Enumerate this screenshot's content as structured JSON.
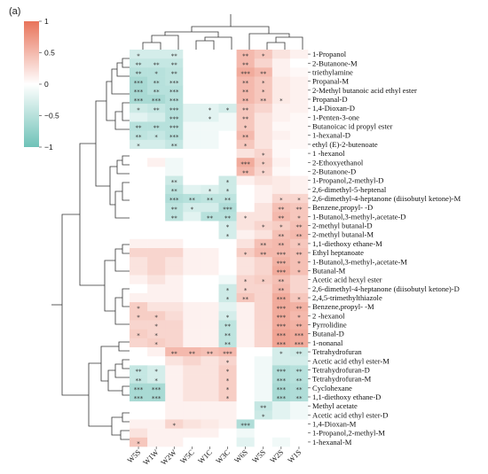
{
  "panel_label": "(a)",
  "chart_data": {
    "type": "heatmap",
    "columns": [
      "W5S",
      "W1W",
      "W2W",
      "W5C",
      "W1C",
      "W3C",
      "W6S",
      "W5S",
      "W2S",
      "W1S"
    ],
    "colorbar": {
      "min": -1,
      "max": 1,
      "ticks": [
        1,
        0.5,
        0,
        -0.5,
        -1
      ],
      "tick_labels": [
        "1",
        "0.5",
        "0",
        "−0.5",
        "−1"
      ],
      "colors": {
        "high": "#e8735a",
        "mid": "#ffffff",
        "low": "#6fc2b8"
      }
    },
    "rows": [
      {
        "label": "1-Propanol",
        "values": [
          -0.3,
          -0.3,
          -0.3,
          0,
          0,
          0,
          0.5,
          0.4,
          0.2,
          0.1
        ],
        "stars": [
          "*",
          "",
          "**",
          "",
          "",
          "",
          "**",
          "*",
          "",
          ""
        ]
      },
      {
        "label": "2-Butanone-M",
        "values": [
          -0.4,
          -0.4,
          -0.4,
          0,
          0,
          0,
          0.5,
          0.3,
          0.1,
          0
        ],
        "stars": [
          "**",
          "**",
          "**",
          "",
          "",
          "",
          "**",
          "",
          "",
          ""
        ]
      },
      {
        "label": "triethylamine",
        "values": [
          -0.5,
          -0.5,
          -0.45,
          0,
          0,
          0,
          0.6,
          0.5,
          0.1,
          0.05
        ],
        "stars": [
          "**",
          "*",
          "**",
          "",
          "",
          "",
          "***",
          "**",
          "",
          ""
        ]
      },
      {
        "label": "Propanal-M",
        "values": [
          -0.6,
          -0.5,
          -0.45,
          0,
          0,
          0,
          0.5,
          0.4,
          0.15,
          0.1
        ],
        "stars": [
          "***",
          "**",
          "***",
          "",
          "",
          "",
          "**",
          "*",
          "",
          ""
        ]
      },
      {
        "label": "2-Methyl butanoic acid ethyl ester",
        "values": [
          -0.6,
          -0.5,
          -0.5,
          0,
          0,
          0,
          0.5,
          0.4,
          0.15,
          0.1
        ],
        "stars": [
          "***",
          "**",
          "***",
          "",
          "",
          "",
          "**",
          "*",
          "",
          ""
        ]
      },
      {
        "label": "Propanal-D",
        "values": [
          -0.6,
          -0.6,
          -0.5,
          0,
          0,
          0,
          0.5,
          0.4,
          0.15,
          0.1
        ],
        "stars": [
          "***",
          "***",
          "***",
          "",
          "",
          "",
          "**",
          "**",
          "*",
          ""
        ]
      },
      {
        "label": "1,4-Dioxan-D",
        "values": [
          -0.35,
          -0.4,
          -0.5,
          -0.2,
          -0.2,
          -0.3,
          0.4,
          0.3,
          0.1,
          0.1
        ],
        "stars": [
          "*",
          "**",
          "***",
          "",
          "*",
          "*",
          "**",
          "",
          "",
          ""
        ]
      },
      {
        "label": "1-Penten-3-one",
        "values": [
          -0.2,
          -0.3,
          -0.5,
          -0.2,
          -0.2,
          -0.1,
          0.4,
          0.2,
          0.1,
          0.05
        ],
        "stars": [
          "",
          "",
          "***",
          "",
          "*",
          "",
          "**",
          "",
          "",
          ""
        ]
      },
      {
        "label": "Butanoicac id propyl ester",
        "values": [
          -0.5,
          -0.5,
          -0.5,
          -0.1,
          -0.1,
          -0.1,
          0.4,
          0.2,
          0.05,
          0.05
        ],
        "stars": [
          "**",
          "**",
          "***",
          "",
          "",
          "",
          "*",
          "",
          "",
          ""
        ]
      },
      {
        "label": "1-hexanal-D",
        "values": [
          -0.45,
          -0.4,
          -0.5,
          -0.1,
          -0.1,
          0,
          0.5,
          0.2,
          0.1,
          0.05
        ],
        "stars": [
          "**",
          "*",
          "***",
          "",
          "",
          "",
          "**",
          "",
          "",
          ""
        ]
      },
      {
        "label": "ethyl (E)-2-butenoate",
        "values": [
          -0.3,
          -0.3,
          -0.4,
          -0.1,
          -0.1,
          0,
          0.4,
          0.2,
          0.05,
          0.05
        ],
        "stars": [
          "*",
          "",
          "**",
          "",
          "",
          "",
          "*",
          "",
          "",
          ""
        ]
      },
      {
        "label": "1 -hexanol",
        "values": [
          0,
          0,
          0,
          0,
          0,
          0,
          0.2,
          0.3,
          0.05,
          0
        ],
        "stars": [
          "",
          "",
          "",
          "",
          "",
          "",
          "",
          "*",
          "",
          ""
        ]
      },
      {
        "label": "2-Ethoxyethanol",
        "values": [
          0,
          0.1,
          -0.1,
          0,
          0,
          0,
          0.6,
          0.35,
          0.1,
          0
        ],
        "stars": [
          "",
          "",
          "",
          "",
          "",
          "",
          "***",
          "*",
          "",
          ""
        ]
      },
      {
        "label": "2-Butanone-D",
        "values": [
          0,
          0,
          -0.1,
          0,
          0,
          0,
          0.5,
          0.3,
          0.05,
          0
        ],
        "stars": [
          "",
          "",
          "",
          "",
          "",
          "",
          "**",
          "*",
          "",
          ""
        ]
      },
      {
        "label": "1-Propanol,2-methyl-D",
        "values": [
          0,
          0,
          -0.35,
          0,
          0,
          -0.35,
          0.1,
          0.2,
          0.15,
          0.1
        ],
        "stars": [
          "",
          "",
          "**",
          "",
          "",
          "*",
          "",
          "",
          "",
          ""
        ]
      },
      {
        "label": "2,6-dimethyl-5-heptenal",
        "values": [
          0,
          0,
          -0.45,
          -0.2,
          -0.25,
          -0.35,
          0,
          0.1,
          0.15,
          0.1
        ],
        "stars": [
          "",
          "",
          "**",
          "",
          "*",
          "*",
          "",
          "",
          "",
          ""
        ]
      },
      {
        "label": "2,6-dimethyl-4-heptanone (diisobutyl ketone)-M",
        "values": [
          0,
          0,
          -0.55,
          -0.5,
          -0.45,
          -0.45,
          0,
          0.1,
          0.3,
          0.3
        ],
        "stars": [
          "",
          "",
          "***",
          "**",
          "**",
          "**",
          "",
          "",
          "*",
          "*"
        ]
      },
      {
        "label": "Benzene,propyl- -D",
        "values": [
          0,
          0,
          -0.45,
          -0.3,
          -0.3,
          -0.55,
          0,
          0.2,
          0.45,
          0.4
        ],
        "stars": [
          "",
          "",
          "**",
          "*",
          "",
          "***",
          "",
          "",
          "**",
          "**"
        ]
      },
      {
        "label": "1-Butanol,3-methyl-,acetate-D",
        "values": [
          0,
          0,
          -0.45,
          -0.2,
          -0.5,
          -0.5,
          0.2,
          0.2,
          0.5,
          0.4
        ],
        "stars": [
          "",
          "",
          "**",
          "",
          "**",
          "**",
          "*",
          "",
          "**",
          "*"
        ]
      },
      {
        "label": "2-methyl butanal-D",
        "values": [
          0,
          0,
          0,
          0,
          0,
          -0.3,
          0.2,
          0.3,
          0.35,
          0.45
        ],
        "stars": [
          "",
          "",
          "",
          "",
          "",
          "*",
          "",
          "*",
          "*",
          "**"
        ]
      },
      {
        "label": "2-methyl butanal-M",
        "values": [
          0,
          0,
          0,
          0,
          0,
          -0.3,
          0.1,
          0.2,
          0.45,
          0.5
        ],
        "stars": [
          "",
          "",
          "",
          "",
          "",
          "*",
          "",
          "",
          "**",
          "**"
        ]
      },
      {
        "label": "1,1-diethoxy ethane-M",
        "values": [
          0.1,
          0.1,
          0.1,
          0,
          0,
          0,
          0.2,
          0.45,
          0.5,
          0.4
        ],
        "stars": [
          "",
          "",
          "",
          "",
          "",
          "",
          "",
          "**",
          "**",
          "*"
        ]
      },
      {
        "label": "Ethyl heptanoate",
        "values": [
          0.3,
          0.3,
          0.3,
          0.1,
          0.1,
          0,
          0.35,
          0.5,
          0.5,
          0.45
        ],
        "stars": [
          "",
          "",
          "",
          "",
          "",
          "",
          "*",
          "**",
          "***",
          "**"
        ]
      },
      {
        "label": "1-Butanol,3-methyl-,acetate-M",
        "values": [
          0.2,
          0.3,
          0.2,
          0.1,
          0.1,
          0,
          0.2,
          0.3,
          0.55,
          0.45
        ],
        "stars": [
          "",
          "",
          "",
          "",
          "",
          "",
          "",
          "",
          "***",
          "*"
        ]
      },
      {
        "label": "Butanal-M",
        "values": [
          0.2,
          0.3,
          0.2,
          0.1,
          0.1,
          0,
          0.2,
          0.3,
          0.6,
          0.45
        ],
        "stars": [
          "",
          "",
          "",
          "",
          "",
          "",
          "",
          "",
          "***",
          "*"
        ]
      },
      {
        "label": "Acetic acid hexyl ester",
        "values": [
          0.1,
          0.2,
          0.1,
          0,
          0,
          -0.1,
          0.3,
          0.35,
          0.45,
          0.3
        ],
        "stars": [
          "",
          "",
          "",
          "",
          "",
          "",
          "*",
          "*",
          "**",
          ""
        ]
      },
      {
        "label": "2,6-dimethyl-4-heptanone (diisobutyl ketone)-D",
        "values": [
          0,
          0.1,
          0.1,
          0,
          0,
          -0.35,
          0.3,
          0.3,
          0.5,
          0.3
        ],
        "stars": [
          "",
          "",
          "",
          "",
          "",
          "*",
          "*",
          "",
          "**",
          ""
        ]
      },
      {
        "label": "2,4,5-trimethylthiazole",
        "values": [
          0.1,
          0.1,
          0.1,
          0,
          0,
          -0.35,
          0.4,
          0.3,
          0.6,
          0.4
        ],
        "stars": [
          "",
          "",
          "",
          "",
          "",
          "*",
          "**",
          "",
          "***",
          "*"
        ]
      },
      {
        "label": "Benzene,propyl- -M",
        "values": [
          0.35,
          0.2,
          0.2,
          0.1,
          0.1,
          -0.2,
          0.1,
          0.3,
          0.6,
          0.55
        ],
        "stars": [
          "*",
          "",
          "",
          "",
          "",
          "",
          "",
          "",
          "***",
          "**"
        ]
      },
      {
        "label": "2 -hexanol",
        "values": [
          0.35,
          0.35,
          0.25,
          0.1,
          0.1,
          -0.3,
          0.1,
          0.3,
          0.6,
          0.5
        ],
        "stars": [
          "*",
          "*",
          "",
          "",
          "",
          "*",
          "",
          "",
          "***",
          "*"
        ]
      },
      {
        "label": "Pyrrolidine",
        "values": [
          0.3,
          0.3,
          0.3,
          0.1,
          0.1,
          -0.45,
          0.1,
          0.3,
          0.6,
          0.55
        ],
        "stars": [
          "",
          "*",
          "",
          "",
          "",
          "**",
          "",
          "",
          "***",
          "**"
        ]
      },
      {
        "label": "Butanal-D",
        "values": [
          0.35,
          0.3,
          0.3,
          0.1,
          0.1,
          -0.45,
          0.1,
          0.3,
          0.65,
          0.6
        ],
        "stars": [
          "*",
          "*",
          "",
          "",
          "",
          "**",
          "",
          "",
          "***",
          "***"
        ]
      },
      {
        "label": "1-nonanal",
        "values": [
          0.3,
          0.35,
          0.3,
          0.1,
          0.1,
          -0.45,
          0.1,
          0.3,
          0.65,
          0.6
        ],
        "stars": [
          "",
          "*",
          "",
          "",
          "",
          "**",
          "",
          "",
          "***",
          "***"
        ]
      },
      {
        "label": "Tetrahydrofuran",
        "values": [
          0,
          0.1,
          0.5,
          0.5,
          0.45,
          0.5,
          0,
          0,
          -0.3,
          -0.35
        ],
        "stars": [
          "",
          "",
          "**",
          "**",
          "**",
          "***",
          "",
          "",
          "*",
          "**"
        ]
      },
      {
        "label": "Acetic acid ethyl ester-M",
        "values": [
          0,
          0,
          0.2,
          0.3,
          0.2,
          0.3,
          0,
          -0.1,
          -0.3,
          -0.3
        ],
        "stars": [
          "",
          "",
          "",
          "",
          "",
          "*",
          "",
          "",
          "",
          ""
        ]
      },
      {
        "label": "Tetrahydrofuran-D",
        "values": [
          -0.4,
          -0.3,
          0.1,
          0.2,
          0.2,
          0.35,
          0,
          -0.1,
          -0.55,
          -0.5
        ],
        "stars": [
          "**",
          "*",
          "",
          "",
          "",
          "*",
          "",
          "",
          "***",
          "**"
        ]
      },
      {
        "label": "Tetrahydrofuran-M",
        "values": [
          -0.4,
          -0.3,
          0.1,
          0.2,
          0.2,
          0.35,
          0,
          -0.1,
          -0.55,
          -0.5
        ],
        "stars": [
          "**",
          "*",
          "",
          "",
          "",
          "*",
          "",
          "",
          "***",
          "**"
        ]
      },
      {
        "label": "Cyclohexane",
        "values": [
          -0.6,
          -0.6,
          0.1,
          0.2,
          0.2,
          0.35,
          0,
          -0.1,
          -0.6,
          -0.55
        ],
        "stars": [
          "***",
          "***",
          "",
          "",
          "",
          "*",
          "",
          "",
          "***",
          "**"
        ]
      },
      {
        "label": "1,1-diethoxy ethane-D",
        "values": [
          -0.6,
          -0.6,
          0.1,
          0.2,
          0.2,
          0.35,
          0,
          -0.1,
          -0.6,
          -0.55
        ],
        "stars": [
          "***",
          "***",
          "",
          "",
          "",
          "*",
          "",
          "",
          "***",
          "**"
        ]
      },
      {
        "label": "Methyl acetate",
        "values": [
          0,
          0,
          0.1,
          0.1,
          0.1,
          0.1,
          0,
          -0.4,
          -0.2,
          -0.1
        ],
        "stars": [
          "",
          "",
          "",
          "",
          "",
          "",
          "",
          "**",
          "",
          ""
        ]
      },
      {
        "label": "Acetic acid ethyl ester-D",
        "values": [
          0,
          0,
          0.1,
          0.1,
          0.1,
          0.1,
          0,
          -0.35,
          -0.2,
          -0.1
        ],
        "stars": [
          "",
          "",
          "",
          "",
          "",
          "",
          "",
          "*",
          "",
          ""
        ]
      },
      {
        "label": "1,4-Dioxan-M",
        "values": [
          0.1,
          0.1,
          0.3,
          0.2,
          0.15,
          0.1,
          -0.55,
          0,
          0,
          0
        ],
        "stars": [
          "",
          "",
          "*",
          "",
          "",
          "",
          "***",
          "",
          "",
          ""
        ]
      },
      {
        "label": "1-Propanol,2-methyl-M",
        "values": [
          0.2,
          0.1,
          0.1,
          0.1,
          0.1,
          0,
          -0.1,
          0,
          0,
          0
        ],
        "stars": [
          "",
          "",
          "",
          "",
          "",
          "",
          "",
          "",
          "",
          ""
        ]
      },
      {
        "label": "1-hexanal-M",
        "values": [
          0.4,
          0.1,
          0.1,
          0,
          0,
          0,
          -0.2,
          0,
          -0.1,
          0
        ],
        "stars": [
          "*",
          "",
          "",
          "",
          "",
          "",
          "",
          "",
          "",
          ""
        ]
      }
    ]
  }
}
